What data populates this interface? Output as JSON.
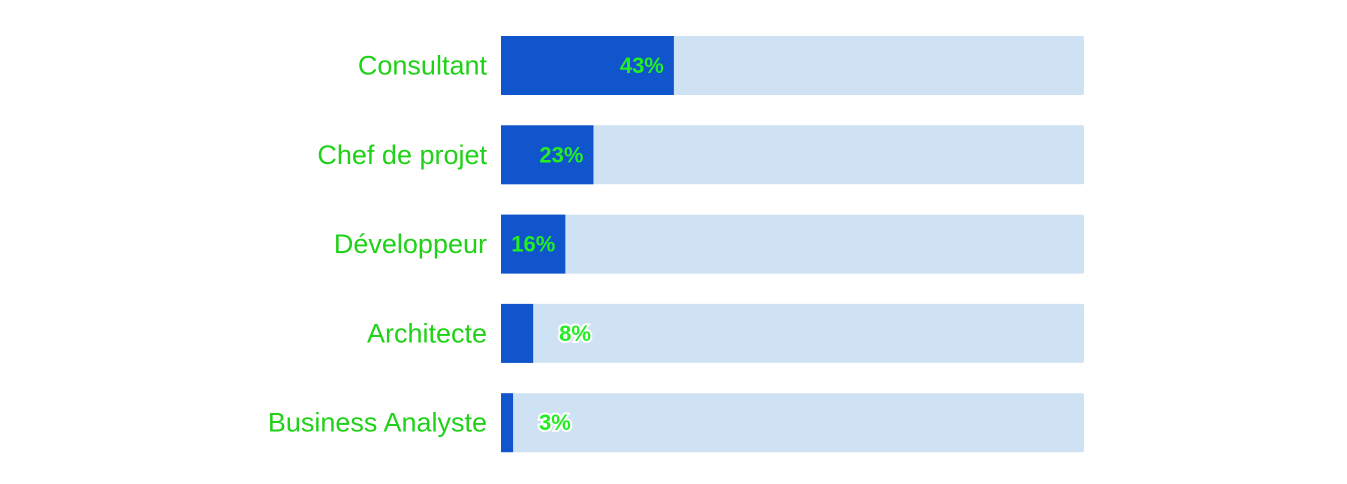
{
  "chart_data": {
    "type": "bar",
    "orientation": "horizontal",
    "categories": [
      "Consultant",
      "Chef de projet",
      "Développeur",
      "Architecte",
      "Business Analyste"
    ],
    "values": [
      43,
      23,
      16,
      8,
      3
    ],
    "value_labels": [
      "43%",
      "23%",
      "16%",
      "8%",
      "3%"
    ],
    "value_unit": "%",
    "xlim": [
      0,
      145
    ],
    "grid": false,
    "legend": "none",
    "colors": {
      "bar": "#1155cc",
      "track": "#cfe2f3",
      "category_text": "#1fd117",
      "value_text": "#22ee22"
    }
  }
}
